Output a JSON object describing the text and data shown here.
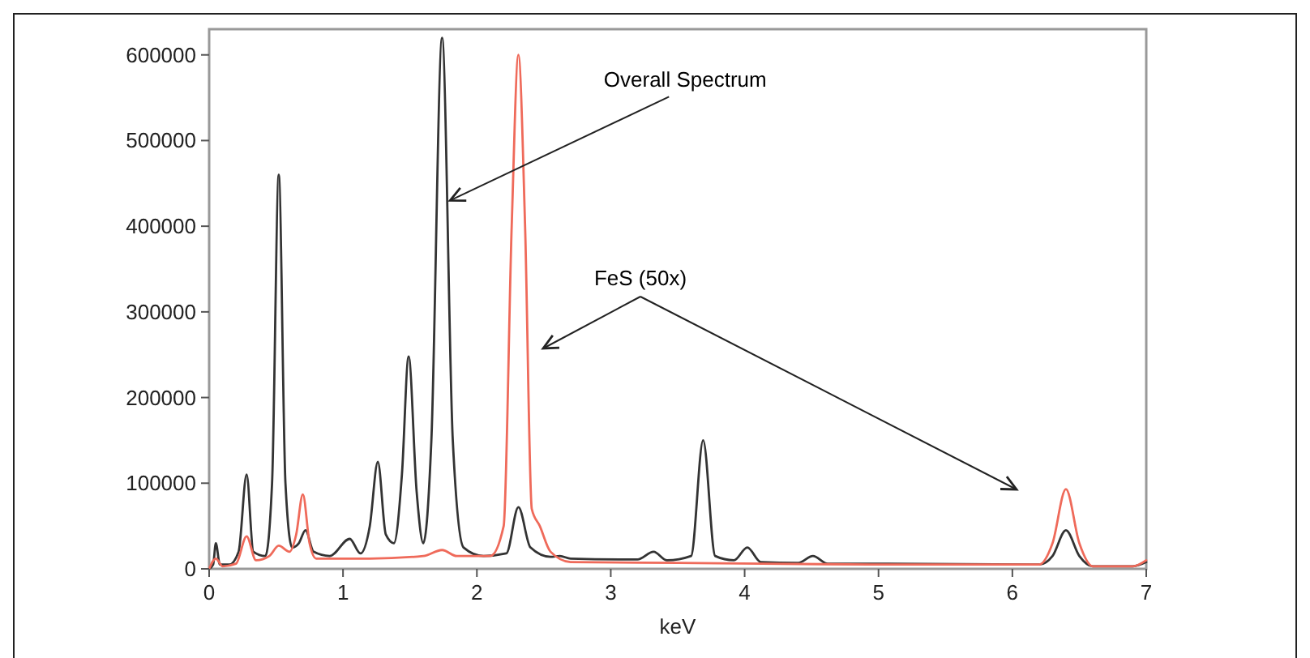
{
  "chart_data": {
    "type": "line",
    "xlabel": "keV",
    "xlim": [
      0,
      7
    ],
    "xticks": [
      0,
      1,
      2,
      3,
      4,
      5,
      6,
      7
    ],
    "ylim": [
      0,
      630000
    ],
    "yticks": [
      0,
      100000,
      200000,
      300000,
      400000,
      500000,
      600000
    ],
    "grid": false,
    "marker": "none",
    "line_style": "solid",
    "annotations": [
      {
        "text": "Overall Spectrum",
        "x": 1.8,
        "y": 430000
      },
      "FeS (50x)"
    ],
    "series": [
      {
        "color": "#333333",
        "x": [
          0,
          0.03,
          0.05,
          0.08,
          0.15,
          0.22,
          0.28,
          0.33,
          0.42,
          0.47,
          0.52,
          0.57,
          0.62,
          0.67,
          0.72,
          0.78,
          0.9,
          1.05,
          1.13,
          1.2,
          1.26,
          1.32,
          1.38,
          1.44,
          1.49,
          1.55,
          1.6,
          1.66,
          1.74,
          1.82,
          1.9,
          2.05,
          2.22,
          2.31,
          2.4,
          2.55,
          2.62,
          2.7,
          3.2,
          3.32,
          3.42,
          3.6,
          3.69,
          3.78,
          3.92,
          4.02,
          4.12,
          4.4,
          4.51,
          4.62,
          5,
          6.2,
          6.3,
          6.4,
          6.5,
          6.6,
          6.9,
          7
        ],
        "values": [
          0,
          5000,
          30000,
          5000,
          5000,
          20000,
          110000,
          20000,
          15000,
          100000,
          460000,
          100000,
          25000,
          30000,
          45000,
          20000,
          15000,
          35000,
          18000,
          50000,
          125000,
          40000,
          30000,
          110000,
          248000,
          90000,
          30000,
          150000,
          620000,
          150000,
          25000,
          15000,
          18000,
          72000,
          25000,
          14000,
          15000,
          12000,
          11000,
          20000,
          10000,
          15000,
          150000,
          15000,
          10000,
          25000,
          8000,
          7000,
          15000,
          6000,
          6000,
          5000,
          15000,
          45000,
          15000,
          3000,
          3000,
          8000
        ]
      },
      {
        "color": "#ef6a5a",
        "x": [
          0,
          0.05,
          0.1,
          0.2,
          0.28,
          0.35,
          0.45,
          0.52,
          0.6,
          0.65,
          0.7,
          0.75,
          0.8,
          1.2,
          1.6,
          1.74,
          1.85,
          2.1,
          2.2,
          2.26,
          2.31,
          2.36,
          2.41,
          2.47,
          2.55,
          2.7,
          3.5,
          5,
          6.2,
          6.3,
          6.4,
          6.5,
          6.6,
          6.9,
          7
        ],
        "values": [
          0,
          12000,
          3000,
          6000,
          38000,
          10000,
          15000,
          27000,
          20000,
          40000,
          87000,
          30000,
          12000,
          12000,
          15000,
          22000,
          15000,
          15000,
          50000,
          400000,
          600000,
          400000,
          70000,
          50000,
          20000,
          8000,
          7000,
          5000,
          5000,
          30000,
          93000,
          30000,
          3000,
          3000,
          10000
        ]
      }
    ]
  }
}
